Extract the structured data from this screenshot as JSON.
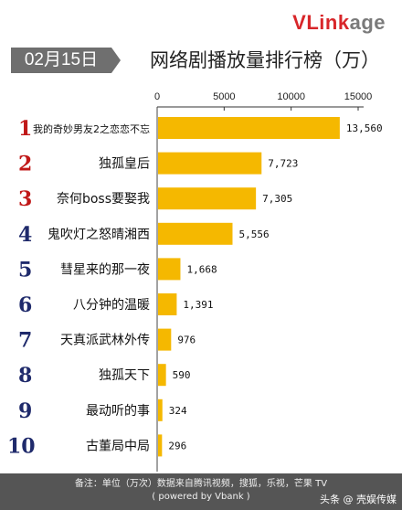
{
  "brand": {
    "v": "V",
    "link": "Link",
    "age": "age"
  },
  "date_badge": "02月15日",
  "chart_data": {
    "type": "bar",
    "orientation": "horizontal",
    "title": "网络剧播放量排行榜（万）",
    "xlim": [
      0,
      15000
    ],
    "x_ticks": [
      0,
      5000,
      10000,
      15000
    ],
    "ranks": [
      "1",
      "2",
      "3",
      "4",
      "5",
      "6",
      "7",
      "8",
      "9",
      "10"
    ],
    "categories": [
      "我的奇妙男友2之恋恋不忘",
      "独孤皇后",
      "奈何boss要娶我",
      "鬼吹灯之怒晴湘西",
      "彗星来的那一夜",
      "八分钟的温暖",
      "天真派武林外传",
      "独孤天下",
      "最动听的事",
      "古董局中局"
    ],
    "values": [
      13560,
      7723,
      7305,
      5556,
      1668,
      1391,
      976,
      590,
      324,
      296
    ],
    "value_labels": [
      "13,560",
      "7,723",
      "7,305",
      "5,556",
      "1,668",
      "1,391",
      "976",
      "590",
      "324",
      "296"
    ],
    "bar_color": "#f5b800",
    "rank_color_top": "#c01818",
    "rank_color_rest": "#1f2a6b"
  },
  "footer": {
    "line1": "备注：单位（万次）数据来自腾讯视频，搜狐，乐视，芒果 TV",
    "line2": "( powered by Vbank )",
    "watermark": "头条 @ 壳娱传媒"
  }
}
